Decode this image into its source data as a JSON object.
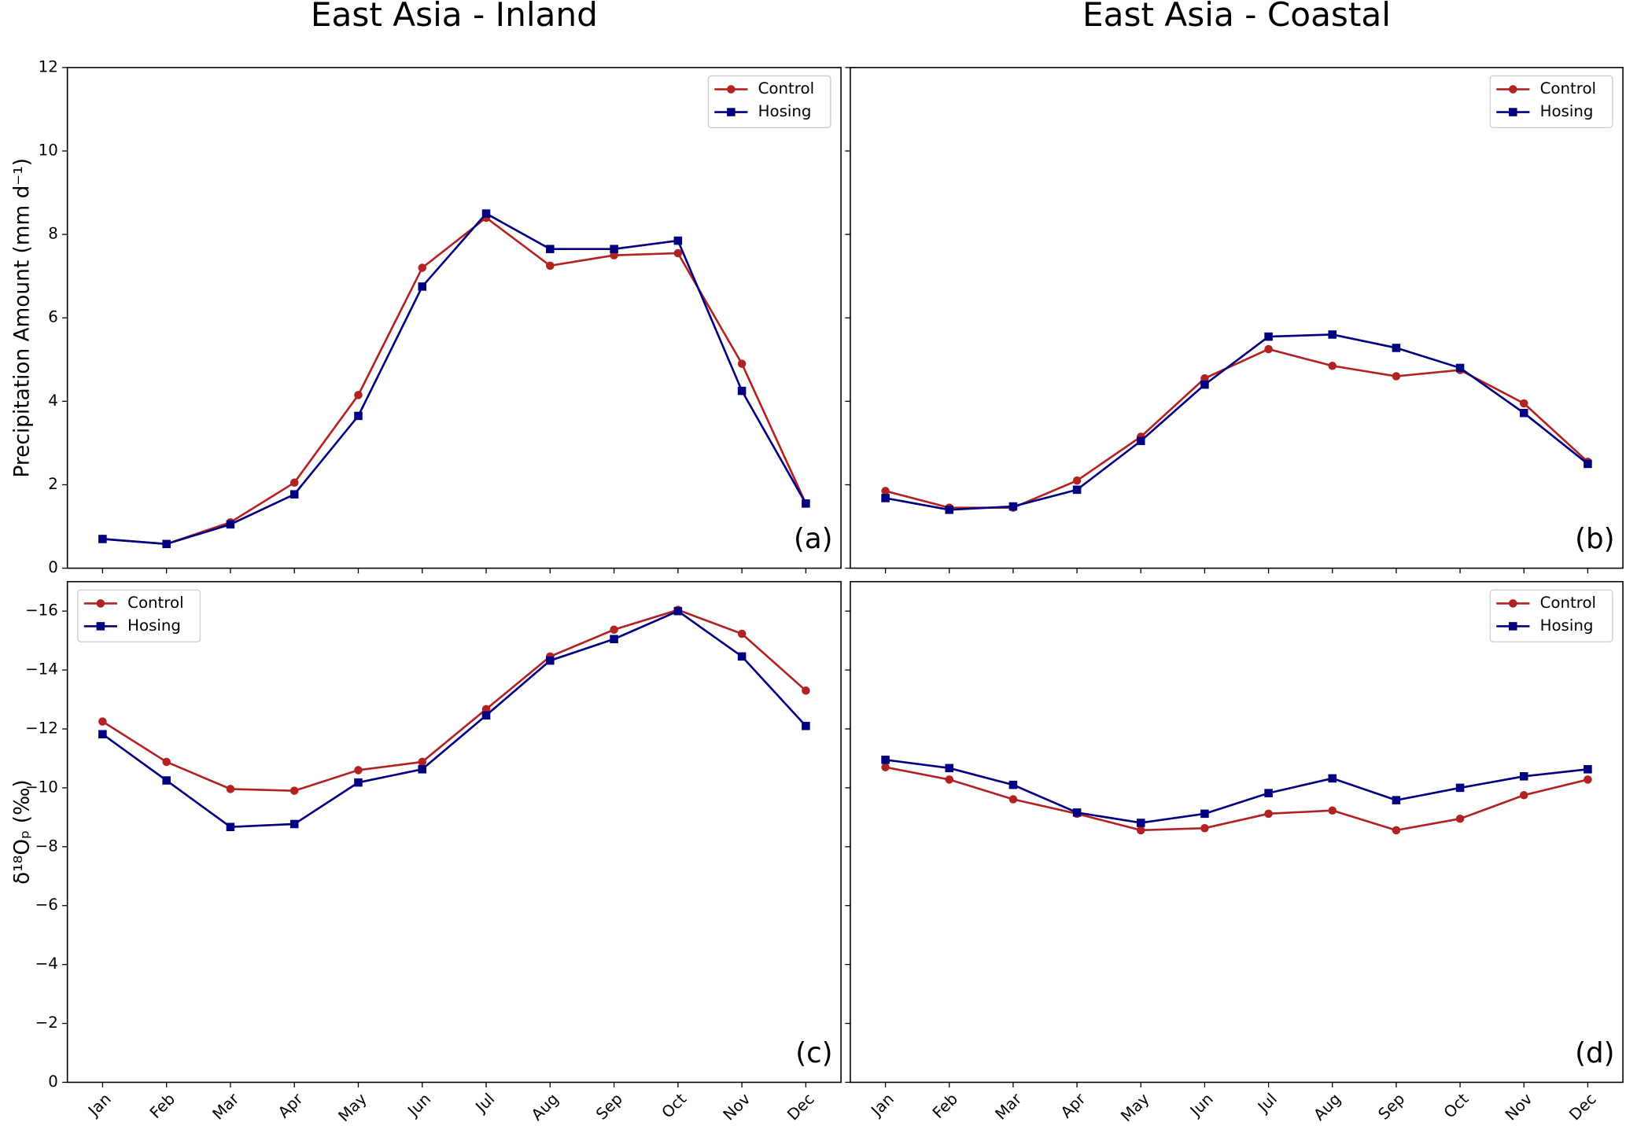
{
  "chart_data": [
    {
      "type": "line",
      "title": "East Asia - Inland",
      "ylabel": "Precipitation Amount (mm d⁻¹)",
      "panel_label": "(a)",
      "categories": [
        null,
        null,
        null,
        null,
        null,
        null,
        null,
        null,
        null,
        null,
        null,
        null
      ],
      "ylim": [
        0,
        12
      ],
      "yticks": [
        0,
        2,
        4,
        6,
        8,
        10,
        12
      ],
      "legend": "upper right",
      "series": [
        {
          "name": "Control",
          "color": "#b22222",
          "marker": "circle",
          "values": [
            0.7,
            0.58,
            1.1,
            2.05,
            4.15,
            7.2,
            8.4,
            7.25,
            7.5,
            7.55,
            4.9,
            1.55
          ]
        },
        {
          "name": "Hosing",
          "color": "#000080",
          "marker": "square",
          "values": [
            0.7,
            0.58,
            1.05,
            1.77,
            3.65,
            6.75,
            8.5,
            7.65,
            7.65,
            7.85,
            4.25,
            1.55
          ]
        }
      ]
    },
    {
      "type": "line",
      "title": "East Asia - Coastal",
      "panel_label": "(b)",
      "categories": [
        null,
        null,
        null,
        null,
        null,
        null,
        null,
        null,
        null,
        null,
        null,
        null
      ],
      "ylim": [
        0,
        12
      ],
      "yticks": [
        0,
        2,
        4,
        6,
        8,
        10,
        12
      ],
      "legend": "upper right",
      "series": [
        {
          "name": "Control",
          "color": "#b22222",
          "marker": "circle",
          "values": [
            1.85,
            1.45,
            1.45,
            2.1,
            3.15,
            4.55,
            5.25,
            4.85,
            4.6,
            4.75,
            3.95,
            2.55
          ]
        },
        {
          "name": "Hosing",
          "color": "#000080",
          "marker": "square",
          "values": [
            1.68,
            1.4,
            1.48,
            1.88,
            3.05,
            4.4,
            5.55,
            5.6,
            5.28,
            4.8,
            3.72,
            2.5
          ]
        }
      ]
    },
    {
      "type": "line",
      "ylabel": "δ¹⁸Oₚ (‰)",
      "panel_label": "(c)",
      "categories": [
        "Jan",
        "Feb",
        "Mar",
        "Apr",
        "May",
        "Jun",
        "Jul",
        "Aug",
        "Sep",
        "Oct",
        "Nov",
        "Dec"
      ],
      "ylim": [
        0,
        -17
      ],
      "yticks": [
        0,
        {
          "value": -2,
          "label": "−2"
        },
        {
          "value": -4,
          "label": "−4"
        },
        {
          "value": -6,
          "label": "−6"
        },
        {
          "value": -8,
          "label": "−8"
        },
        {
          "value": -10,
          "label": "−10"
        },
        {
          "value": -12,
          "label": "−12"
        },
        {
          "value": -14,
          "label": "−14"
        },
        {
          "value": -16,
          "label": "−16"
        }
      ],
      "legend": "upper left",
      "series": [
        {
          "name": "Control",
          "color": "#b22222",
          "marker": "circle",
          "values": [
            -12.25,
            -10.88,
            -9.96,
            -9.9,
            -10.6,
            -10.88,
            -12.67,
            -14.46,
            -15.37,
            -16.04,
            -15.23,
            -13.3
          ]
        },
        {
          "name": "Hosing",
          "color": "#000080",
          "marker": "square",
          "values": [
            -11.82,
            -10.25,
            -8.67,
            -8.77,
            -10.18,
            -10.63,
            -12.46,
            -14.32,
            -15.05,
            -16.0,
            -14.46,
            -12.1
          ]
        }
      ]
    },
    {
      "type": "line",
      "panel_label": "(d)",
      "categories": [
        "Jan",
        "Feb",
        "Mar",
        "Apr",
        "May",
        "Jun",
        "Jul",
        "Aug",
        "Sep",
        "Oct",
        "Nov",
        "Dec"
      ],
      "ylim": [
        0,
        -17
      ],
      "yticks": [
        0,
        {
          "value": -2,
          "label": "−2"
        },
        {
          "value": -4,
          "label": "−4"
        },
        {
          "value": -6,
          "label": "−6"
        },
        {
          "value": -8,
          "label": "−8"
        },
        {
          "value": -10,
          "label": "−10"
        },
        {
          "value": -12,
          "label": "−12"
        },
        {
          "value": -14,
          "label": "−14"
        },
        {
          "value": -16,
          "label": "−16"
        }
      ],
      "legend": "upper right",
      "series": [
        {
          "name": "Control",
          "color": "#b22222",
          "marker": "circle",
          "values": [
            -10.7,
            -10.28,
            -9.61,
            -9.12,
            -8.56,
            -8.63,
            -9.12,
            -9.23,
            -8.56,
            -8.95,
            -9.75,
            -10.28
          ]
        },
        {
          "name": "Hosing",
          "color": "#000080",
          "marker": "square",
          "values": [
            -10.95,
            -10.67,
            -10.1,
            -9.16,
            -8.81,
            -9.12,
            -9.82,
            -10.32,
            -9.58,
            -10.0,
            -10.39,
            -10.63
          ]
        }
      ]
    }
  ]
}
